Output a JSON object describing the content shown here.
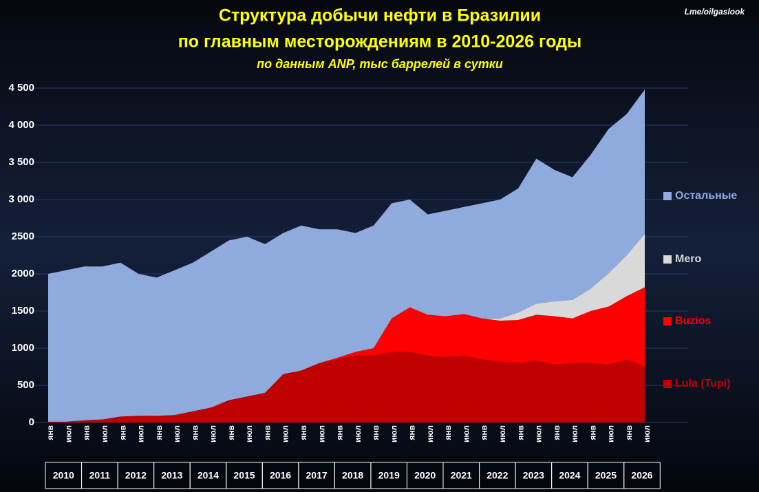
{
  "chart_data": {
    "type": "stacked-area",
    "title": [
      "Структура добычи нефти в Бразилии",
      "по главным месторождениям в 2010-2026 годы"
    ],
    "subtitle": "по данным ANP, тыс баррелей в сутки",
    "watermark": "Lme/oilgaslook",
    "categories": [
      "янв",
      "июл",
      "янв",
      "июл",
      "янв",
      "июл",
      "янв",
      "июл",
      "янв",
      "июл",
      "янв",
      "июл",
      "янв",
      "июл",
      "янв",
      "июл",
      "янв",
      "июл",
      "янв",
      "июл",
      "янв",
      "июл",
      "янв",
      "июл",
      "янв",
      "июл",
      "янв",
      "июл",
      "янв",
      "июл",
      "янв",
      "июл",
      "янв",
      "июл"
    ],
    "years": [
      "2010",
      "2011",
      "2012",
      "2013",
      "2014",
      "2015",
      "2016",
      "2017",
      "2018",
      "2019",
      "2020",
      "2021",
      "2022",
      "2023",
      "2024",
      "2025",
      "2026"
    ],
    "series": [
      {
        "name": "Lula (Tupi)",
        "color": "#c00000",
        "values": [
          10,
          10,
          30,
          40,
          80,
          90,
          90,
          100,
          150,
          200,
          300,
          350,
          400,
          650,
          700,
          800,
          850,
          900,
          900,
          950,
          950,
          900,
          880,
          900,
          850,
          820,
          800,
          830,
          780,
          800,
          800,
          780,
          850,
          750
        ]
      },
      {
        "name": "Buzios",
        "color": "#ff0000",
        "values": [
          0,
          0,
          0,
          0,
          0,
          0,
          0,
          0,
          0,
          0,
          0,
          0,
          0,
          0,
          0,
          0,
          20,
          50,
          100,
          450,
          600,
          550,
          550,
          560,
          550,
          550,
          580,
          620,
          650,
          600,
          700,
          780,
          850,
          1070
        ]
      },
      {
        "name": "Mero",
        "color": "#d9d9d9",
        "values": [
          0,
          0,
          0,
          0,
          0,
          0,
          0,
          0,
          0,
          0,
          0,
          0,
          0,
          0,
          0,
          0,
          0,
          0,
          0,
          0,
          0,
          0,
          0,
          0,
          0,
          30,
          100,
          150,
          200,
          250,
          300,
          450,
          550,
          720
        ]
      },
      {
        "name": "Остальные",
        "color": "#8faadc",
        "values": [
          1990,
          2040,
          2070,
          2060,
          2070,
          1910,
          1860,
          1950,
          2000,
          2100,
          2150,
          2150,
          2000,
          1900,
          1950,
          1800,
          1730,
          1600,
          1650,
          1550,
          1450,
          1350,
          1420,
          1440,
          1550,
          1600,
          1670,
          1950,
          1770,
          1650,
          1800,
          1940,
          1900,
          1940
        ]
      }
    ],
    "ylim": [
      0,
      4500
    ],
    "yticks": [
      0,
      500,
      1000,
      1500,
      2000,
      2500,
      {
        "value": 3000,
        "label": "3 000"
      },
      {
        "value": 3500,
        "label": "3 500"
      },
      {
        "value": 4000,
        "label": "4 000"
      },
      {
        "value": 4500,
        "label": "4 500"
      }
    ],
    "grid": true
  }
}
